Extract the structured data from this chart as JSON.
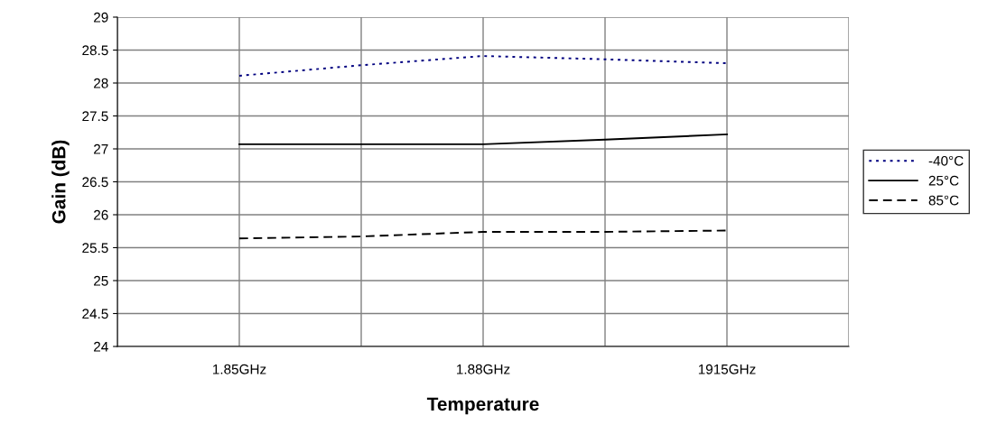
{
  "chart_data": {
    "type": "line",
    "xlabel": "Temperature",
    "ylabel": "Gain (dB)",
    "categories": [
      "1.85GHz",
      null,
      "1.88GHz",
      null,
      "1915GHz"
    ],
    "series": [
      {
        "name": "-40°C",
        "color": "#000080",
        "line_style": "dotted",
        "values": [
          28.11,
          28.27,
          28.41,
          28.36,
          28.3
        ]
      },
      {
        "name": "25°C",
        "color": "#000000",
        "line_style": "solid",
        "values": [
          27.07,
          27.07,
          27.07,
          27.14,
          27.22
        ]
      },
      {
        "name": "85°C",
        "color": "#000000",
        "line_style": "dashed",
        "values": [
          25.64,
          25.67,
          25.74,
          25.74,
          25.76
        ]
      }
    ],
    "ylim": [
      24,
      29
    ],
    "yticks": [
      24,
      24.5,
      25,
      25.5,
      26,
      26.5,
      27,
      27.5,
      28,
      28.5,
      29
    ],
    "grid": true,
    "legend": "right",
    "marker": "none"
  }
}
